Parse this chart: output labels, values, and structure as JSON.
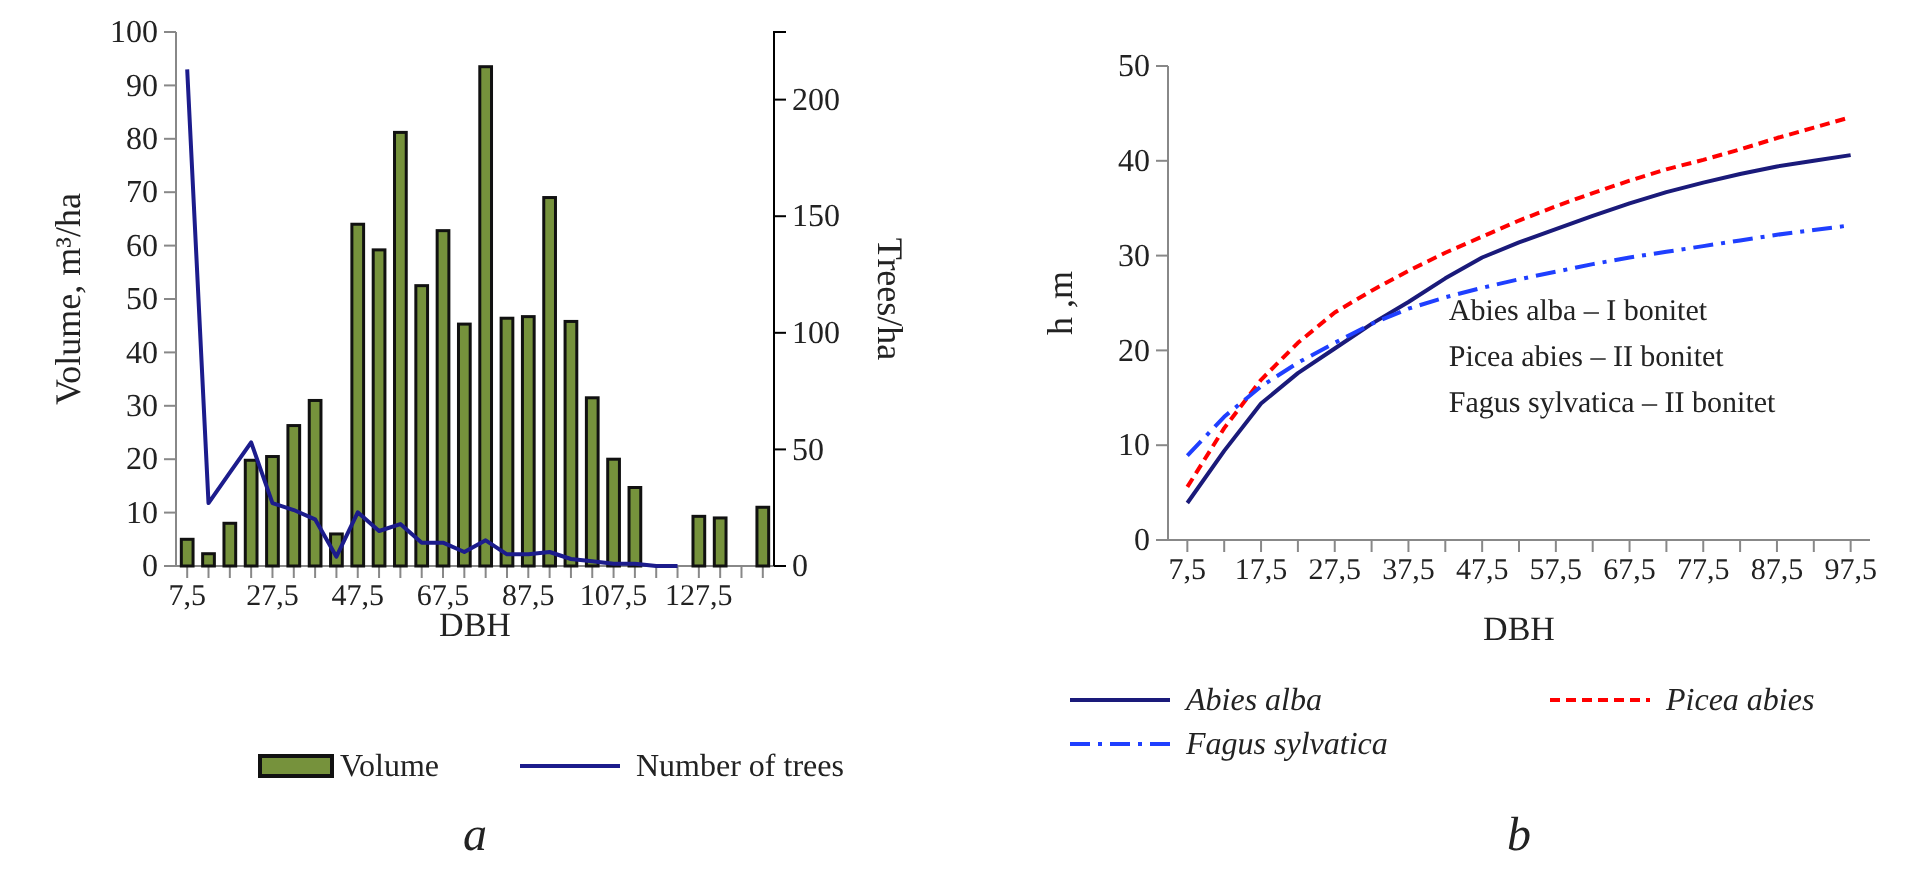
{
  "chart_data": [
    {
      "type": "bar",
      "xlabel": "DBH",
      "ylabel": "Volume, m³/ha",
      "y2label": "Trees/ha",
      "categories": [
        "7,5",
        null,
        null,
        null,
        "27,5",
        null,
        null,
        null,
        "47,5",
        null,
        null,
        null,
        "67,5",
        null,
        null,
        null,
        "87,5",
        null,
        null,
        null,
        "107,5",
        null,
        null,
        null,
        "127,5",
        null,
        null,
        null
      ],
      "series": [
        {
          "name": "Volume",
          "color": "#76923c",
          "values": [
            5,
            2.3,
            8,
            19.8,
            20.5,
            26.3,
            31,
            6,
            64,
            59.2,
            81.2,
            52.5,
            62.8,
            45.3,
            93.5,
            46.4,
            46.7,
            69,
            45.8,
            31.5,
            20,
            14.7,
            null,
            null,
            9.3,
            9,
            null,
            11
          ]
        },
        {
          "name": "Number of trees",
          "type": "line",
          "axis": "y2",
          "color": "#1c1c8c",
          "line_style": "solid",
          "values": [
            213,
            27,
            40,
            53,
            27,
            24,
            20,
            4,
            23,
            15,
            18,
            10,
            10,
            6,
            11,
            5,
            5,
            6,
            3,
            2,
            1,
            1,
            0,
            0,
            null,
            null,
            null,
            null
          ]
        }
      ],
      "ylim": [
        0,
        100
      ],
      "yticks": [
        0,
        10,
        20,
        30,
        40,
        50,
        60,
        70,
        80,
        90,
        100
      ],
      "y2lim": [
        0,
        229
      ],
      "y2ticks": [
        0,
        50,
        100,
        150,
        200
      ],
      "grid": false,
      "legend": "bottom",
      "marker": "none",
      "annotations": [
        "a"
      ]
    },
    {
      "type": "line",
      "xlabel": "DBH",
      "ylabel": "h ,m",
      "categories": [
        "7,5",
        null,
        "17,5",
        null,
        "27,5",
        null,
        "37,5",
        null,
        "47,5",
        null,
        "57,5",
        null,
        "67,5",
        null,
        "77,5",
        null,
        "87,5",
        null,
        "97,5"
      ],
      "series": [
        {
          "name": "Abies alba",
          "color": "#1a1a7a",
          "line_style": "solid",
          "values": [
            3.9,
            9.4,
            14.4,
            17.6,
            20.2,
            22.8,
            25.1,
            27.6,
            29.8,
            31.4,
            32.8,
            34.2,
            35.5,
            36.7,
            37.7,
            38.6,
            39.4,
            40.0,
            40.6
          ]
        },
        {
          "name": "Picea abies",
          "color": "#ff0000",
          "line_style": "dashed",
          "values": [
            5.6,
            11.8,
            16.9,
            20.8,
            24,
            26.3,
            28.4,
            30.3,
            32,
            33.7,
            35.2,
            36.6,
            37.9,
            39.1,
            40.1,
            41.2,
            42.4,
            43.5,
            44.6
          ]
        },
        {
          "name": "Fagus sylvatica",
          "color": "#1f3fff",
          "line_style": "dashdot",
          "values": [
            8.9,
            13,
            16.2,
            18.7,
            20.8,
            22.8,
            24.4,
            25.6,
            26.6,
            27.5,
            28.3,
            29.1,
            29.8,
            30.4,
            31,
            31.6,
            32.2,
            32.7,
            33.2
          ]
        }
      ],
      "ylim": [
        0,
        50
      ],
      "yticks": [
        0,
        10,
        20,
        30,
        40,
        50
      ],
      "grid": false,
      "legend": "bottom",
      "marker": "none",
      "annotations": [
        "Abies alba – I bonitet",
        "Picea abies – II bonitet",
        "Fagus sylvatica – II bonitet",
        "b"
      ]
    }
  ]
}
